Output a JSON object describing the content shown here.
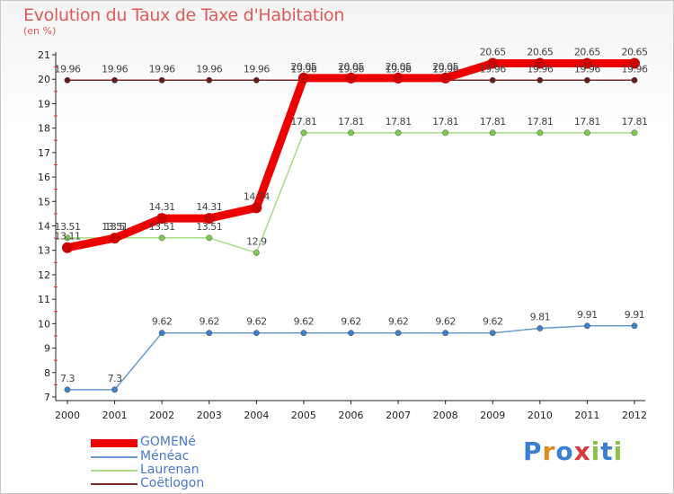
{
  "chart_data": {
    "type": "line",
    "title": "Evolution du Taux de Taxe d'Habitation",
    "subtitle": "(en %)",
    "x": [
      "2000",
      "2001",
      "2002",
      "2003",
      "2004",
      "2005",
      "2006",
      "2007",
      "2008",
      "2009",
      "2010",
      "2011",
      "2012"
    ],
    "ylim": [
      7,
      21
    ],
    "yticks": [
      7,
      8,
      9,
      10,
      11,
      12,
      13,
      14,
      15,
      16,
      17,
      18,
      19,
      20,
      21
    ],
    "grid": false,
    "legend_position": "bottom-left",
    "series": [
      {
        "name": "GOMENé",
        "color": "#ee0000",
        "point_color": "#cc0000",
        "values": [
          13.11,
          13.5,
          14.31,
          14.31,
          14.74,
          20.05,
          20.05,
          20.05,
          20.05,
          20.65,
          20.65,
          20.65,
          20.65
        ],
        "labels": [
          "13.11",
          "13.5",
          "14.31",
          "14.31",
          "14.74",
          "20.05",
          "20.05",
          "20.05",
          "20.05",
          "20.65",
          "20.65",
          "20.65",
          "20.65"
        ]
      },
      {
        "name": "Ménéac",
        "color": "#6a9bd0",
        "point_color": "#3d80c8",
        "values": [
          7.3,
          7.3,
          9.62,
          9.62,
          9.62,
          9.62,
          9.62,
          9.62,
          9.62,
          9.62,
          9.81,
          9.91,
          9.91
        ],
        "labels": [
          "7.3",
          "7.3",
          "9.62",
          "9.62",
          "9.62",
          "9.62",
          "9.62",
          "9.62",
          "9.62",
          "9.62",
          "9.81",
          "9.91",
          "9.91"
        ]
      },
      {
        "name": "Laurenan",
        "color": "#a8dc88",
        "point_color": "#7cc94c",
        "values": [
          13.51,
          13.51,
          13.51,
          13.51,
          12.9,
          17.81,
          17.81,
          17.81,
          17.81,
          17.81,
          17.81,
          17.81,
          17.81
        ],
        "labels": [
          "13.51",
          "13.51",
          "13.51",
          "13.51",
          "12.9",
          "17.81",
          "17.81",
          "17.81",
          "17.81",
          "17.81",
          "17.81",
          "17.81",
          "17.81"
        ]
      },
      {
        "name": "Coëtlogon",
        "color": "#7a2a2a",
        "point_color": "#6a1a1a",
        "values": [
          19.96,
          19.96,
          19.96,
          19.96,
          19.96,
          19.96,
          19.96,
          19.96,
          19.96,
          19.96,
          19.96,
          19.96,
          19.96
        ],
        "labels": [
          "19.96",
          "19.96",
          "19.96",
          "19.96",
          "19.96",
          "19.96",
          "19.96",
          "19.96",
          "19.96",
          "19.96",
          "19.96",
          "19.96",
          "19.96"
        ]
      }
    ]
  },
  "logo": {
    "text": "Proxiti",
    "colors": [
      "#3a7fd0",
      "#e08a1e",
      "#3a7fd0",
      "#d63a3a",
      "#8bc34a",
      "#3a7fd0",
      "#8bc34a"
    ]
  }
}
